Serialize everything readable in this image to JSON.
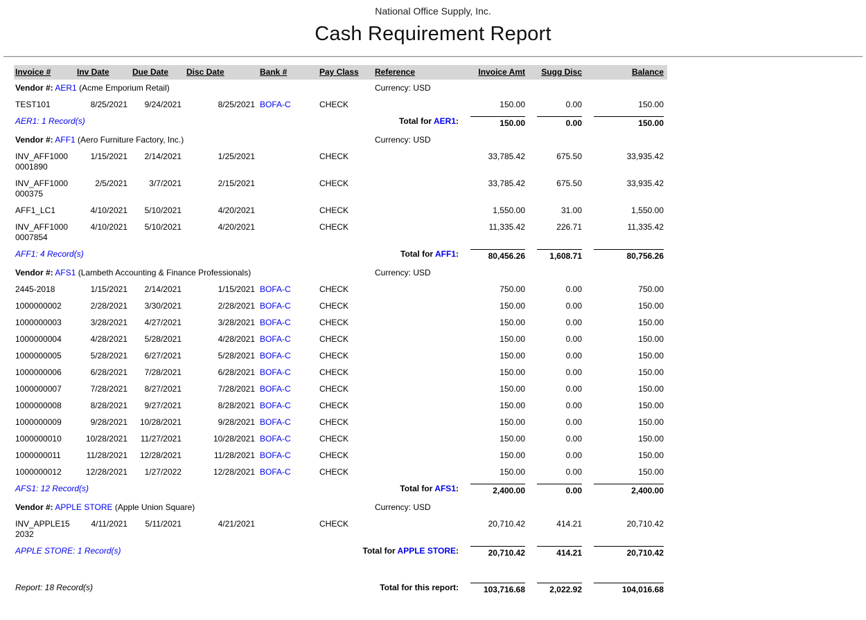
{
  "colors": {
    "link_blue": "#0000EE",
    "header_bg": "#D6D6D6"
  },
  "header": {
    "company": "National Office Supply, Inc.",
    "title": "Cash Requirement Report"
  },
  "strings": {
    "vendor_prefix": "Vendor #:",
    "total_prefix": "Total for ",
    "total_suffix": ":"
  },
  "columns": [
    "Invoice #",
    "Inv Date",
    "Due Date",
    "Disc Date",
    "Bank #",
    "Pay Class",
    "Reference",
    "Invoice Amt",
    "Sugg Disc",
    "Balance"
  ],
  "groups": [
    {
      "code": "AER1",
      "name": "(Acme Emporium Retail)",
      "currency": "Currency: USD",
      "invoices": [
        [
          "TEST101",
          "8/25/2021",
          "9/24/2021",
          "8/25/2021",
          "BOFA-C",
          "CHECK",
          "",
          "150.00",
          "0.00",
          "150.00"
        ]
      ],
      "records": "AER1: 1 Record(s)",
      "totals": [
        "150.00",
        "0.00",
        "150.00"
      ]
    },
    {
      "code": "AFF1",
      "name": "(Aero Furniture Factory, Inc.)",
      "currency": "Currency: USD",
      "invoices": [
        [
          "INV_AFF10000001890",
          "1/15/2021",
          "2/14/2021",
          "1/25/2021",
          "",
          "CHECK",
          "",
          "33,785.42",
          "675.50",
          "33,935.42"
        ],
        [
          "INV_AFF1000000375",
          "2/5/2021",
          "3/7/2021",
          "2/15/2021",
          "",
          "CHECK",
          "",
          "33,785.42",
          "675.50",
          "33,935.42"
        ],
        [
          "AFF1_LC1",
          "4/10/2021",
          "5/10/2021",
          "4/20/2021",
          "",
          "CHECK",
          "",
          "1,550.00",
          "31.00",
          "1,550.00"
        ],
        [
          "INV_AFF10000007854",
          "4/10/2021",
          "5/10/2021",
          "4/20/2021",
          "",
          "CHECK",
          "",
          "11,335.42",
          "226.71",
          "11,335.42"
        ]
      ],
      "records": "AFF1: 4 Record(s)",
      "totals": [
        "80,456.26",
        "1,608.71",
        "80,756.26"
      ]
    },
    {
      "code": "AFS1",
      "name": "(Lambeth Accounting & Finance Professionals)",
      "currency": "Currency: USD",
      "invoices": [
        [
          "2445-2018",
          "1/15/2021",
          "2/14/2021",
          "1/15/2021",
          "BOFA-C",
          "CHECK",
          "",
          "750.00",
          "0.00",
          "750.00"
        ],
        [
          "1000000002",
          "2/28/2021",
          "3/30/2021",
          "2/28/2021",
          "BOFA-C",
          "CHECK",
          "",
          "150.00",
          "0.00",
          "150.00"
        ],
        [
          "1000000003",
          "3/28/2021",
          "4/27/2021",
          "3/28/2021",
          "BOFA-C",
          "CHECK",
          "",
          "150.00",
          "0.00",
          "150.00"
        ],
        [
          "1000000004",
          "4/28/2021",
          "5/28/2021",
          "4/28/2021",
          "BOFA-C",
          "CHECK",
          "",
          "150.00",
          "0.00",
          "150.00"
        ],
        [
          "1000000005",
          "5/28/2021",
          "6/27/2021",
          "5/28/2021",
          "BOFA-C",
          "CHECK",
          "",
          "150.00",
          "0.00",
          "150.00"
        ],
        [
          "1000000006",
          "6/28/2021",
          "7/28/2021",
          "6/28/2021",
          "BOFA-C",
          "CHECK",
          "",
          "150.00",
          "0.00",
          "150.00"
        ],
        [
          "1000000007",
          "7/28/2021",
          "8/27/2021",
          "7/28/2021",
          "BOFA-C",
          "CHECK",
          "",
          "150.00",
          "0.00",
          "150.00"
        ],
        [
          "1000000008",
          "8/28/2021",
          "9/27/2021",
          "8/28/2021",
          "BOFA-C",
          "CHECK",
          "",
          "150.00",
          "0.00",
          "150.00"
        ],
        [
          "1000000009",
          "9/28/2021",
          "10/28/2021",
          "9/28/2021",
          "BOFA-C",
          "CHECK",
          "",
          "150.00",
          "0.00",
          "150.00"
        ],
        [
          "1000000010",
          "10/28/2021",
          "11/27/2021",
          "10/28/2021",
          "BOFA-C",
          "CHECK",
          "",
          "150.00",
          "0.00",
          "150.00"
        ],
        [
          "1000000011",
          "11/28/2021",
          "12/28/2021",
          "11/28/2021",
          "BOFA-C",
          "CHECK",
          "",
          "150.00",
          "0.00",
          "150.00"
        ],
        [
          "1000000012",
          "12/28/2021",
          "1/27/2022",
          "12/28/2021",
          "BOFA-C",
          "CHECK",
          "",
          "150.00",
          "0.00",
          "150.00"
        ]
      ],
      "records": "AFS1: 12 Record(s)",
      "totals": [
        "2,400.00",
        "0.00",
        "2,400.00"
      ]
    },
    {
      "code": "APPLE STORE",
      "name": "(Apple Union Square)",
      "currency": "Currency: USD",
      "invoices": [
        [
          "INV_APPLE152032",
          "4/11/2021",
          "5/11/2021",
          "4/21/2021",
          "",
          "CHECK",
          "",
          "20,710.42",
          "414.21",
          "20,710.42"
        ]
      ],
      "records": "APPLE STORE: 1 Record(s)",
      "totals": [
        "20,710.42",
        "414.21",
        "20,710.42"
      ]
    }
  ],
  "report_footer": {
    "records": "Report: 18 Record(s)",
    "label": "Total for this report:",
    "totals": [
      "103,716.68",
      "2,022.92",
      "104,016.68"
    ]
  }
}
